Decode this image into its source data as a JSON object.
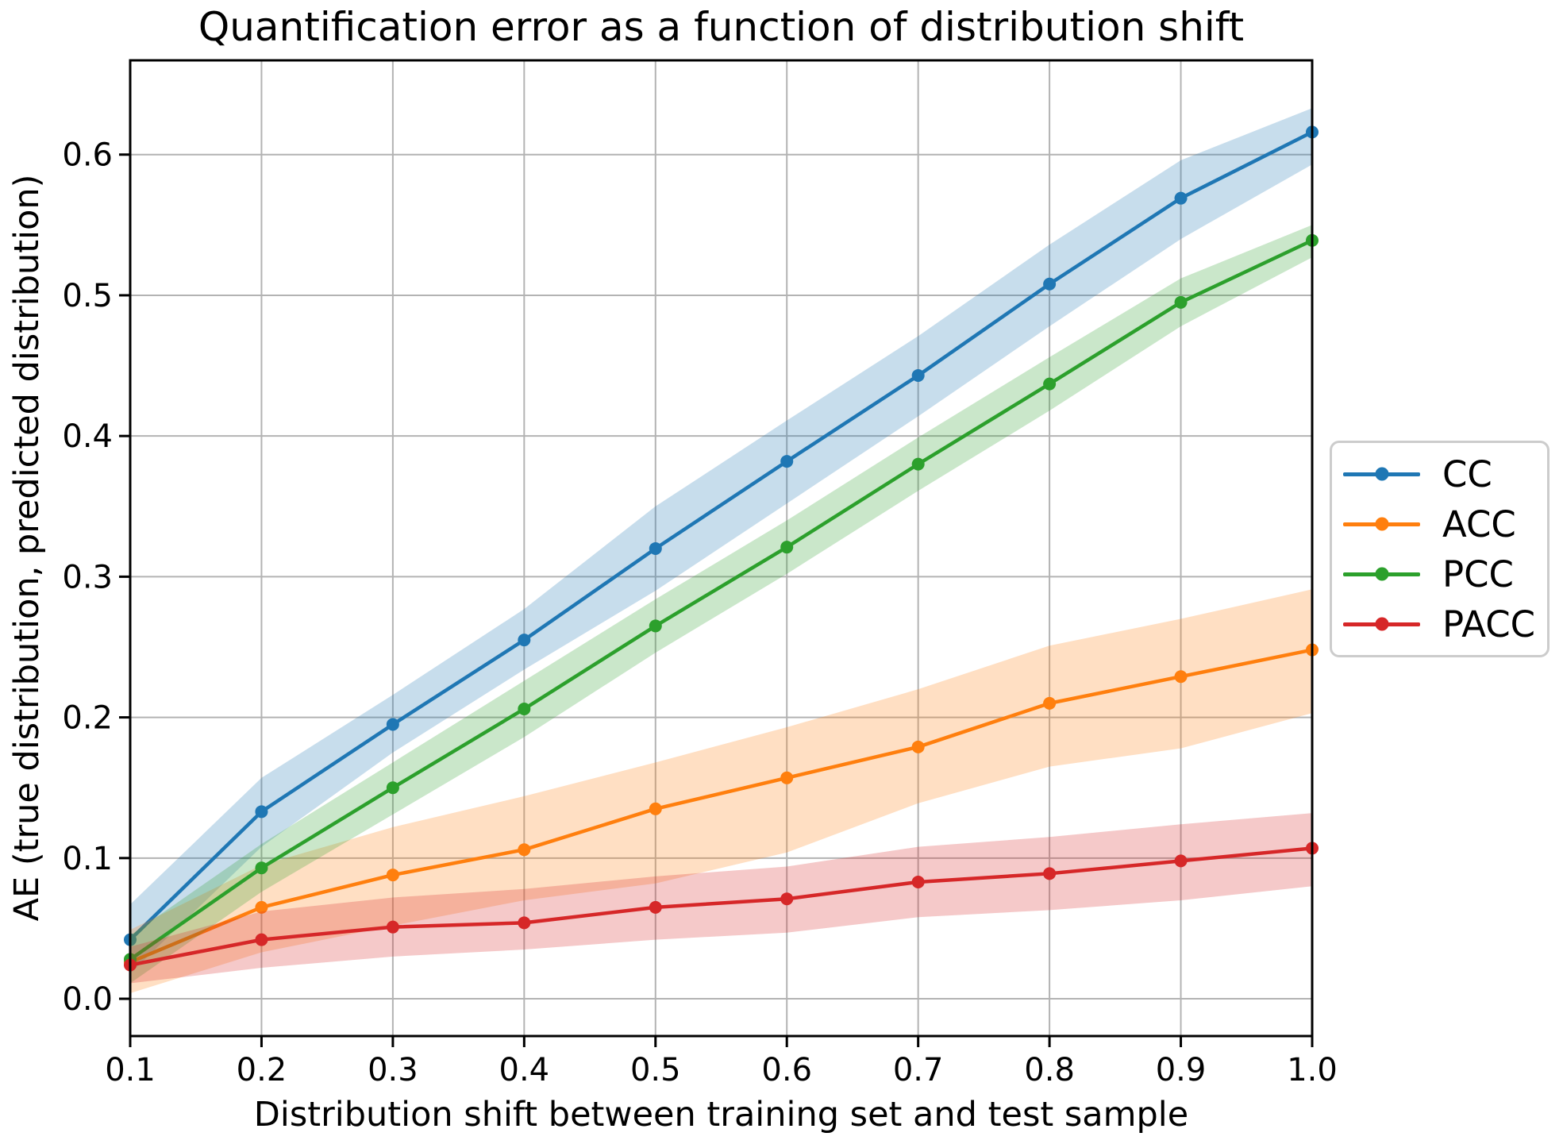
{
  "chart_data": {
    "type": "line",
    "title": "Quantification error as a function of distribution shift",
    "xlabel": "Distribution shift between training set and test sample",
    "ylabel": "AE (true distribution, predicted distribution)",
    "x": [
      0.1,
      0.2,
      0.3,
      0.4,
      0.5,
      0.6,
      0.7,
      0.8,
      0.9,
      1.0
    ],
    "xlim": [
      0.1,
      1.0
    ],
    "ylim": [
      -0.0265,
      0.667
    ],
    "xtick_labels": [
      "0.1",
      "0.2",
      "0.3",
      "0.4",
      "0.5",
      "0.6",
      "0.7",
      "0.8",
      "0.9",
      "1.0"
    ],
    "xtick_values": [
      0.1,
      0.2,
      0.3,
      0.4,
      0.5,
      0.6,
      0.7,
      0.8,
      0.9,
      1.0
    ],
    "ytick_labels": [
      "0.0",
      "0.1",
      "0.2",
      "0.3",
      "0.4",
      "0.5",
      "0.6"
    ],
    "ytick_values": [
      0.0,
      0.1,
      0.2,
      0.3,
      0.4,
      0.5,
      0.6
    ],
    "grid": true,
    "grid_color": "#b3b3b3",
    "spine_color": "#000000",
    "legend_position": "outside-right",
    "series": [
      {
        "name": "CC",
        "color": "#1f77b4",
        "values": [
          0.042,
          0.133,
          0.195,
          0.255,
          0.32,
          0.382,
          0.443,
          0.508,
          0.569,
          0.616
        ],
        "band_lower": [
          0.018,
          0.108,
          0.175,
          0.234,
          0.29,
          0.352,
          0.414,
          0.478,
          0.54,
          0.593
        ],
        "band_upper": [
          0.067,
          0.157,
          0.216,
          0.277,
          0.35,
          0.411,
          0.471,
          0.536,
          0.596,
          0.633
        ]
      },
      {
        "name": "ACC",
        "color": "#ff7f0e",
        "values": [
          0.026,
          0.065,
          0.088,
          0.106,
          0.135,
          0.157,
          0.179,
          0.21,
          0.229,
          0.248
        ],
        "band_lower": [
          0.004,
          0.033,
          0.052,
          0.07,
          0.082,
          0.104,
          0.139,
          0.165,
          0.178,
          0.203
        ],
        "band_upper": [
          0.049,
          0.095,
          0.122,
          0.144,
          0.168,
          0.193,
          0.22,
          0.251,
          0.27,
          0.291
        ]
      },
      {
        "name": "PCC",
        "color": "#2ca02c",
        "values": [
          0.028,
          0.093,
          0.15,
          0.206,
          0.265,
          0.321,
          0.38,
          0.437,
          0.495,
          0.539
        ],
        "band_lower": [
          0.011,
          0.076,
          0.131,
          0.186,
          0.246,
          0.302,
          0.361,
          0.418,
          0.478,
          0.527
        ],
        "band_upper": [
          0.045,
          0.11,
          0.168,
          0.226,
          0.284,
          0.34,
          0.399,
          0.456,
          0.512,
          0.55
        ]
      },
      {
        "name": "PACC",
        "color": "#d62728",
        "values": [
          0.024,
          0.042,
          0.051,
          0.054,
          0.065,
          0.071,
          0.083,
          0.089,
          0.098,
          0.107
        ],
        "band_lower": [
          0.011,
          0.022,
          0.03,
          0.035,
          0.042,
          0.047,
          0.058,
          0.063,
          0.07,
          0.08
        ],
        "band_upper": [
          0.037,
          0.062,
          0.072,
          0.078,
          0.087,
          0.094,
          0.108,
          0.115,
          0.124,
          0.132
        ]
      }
    ]
  }
}
